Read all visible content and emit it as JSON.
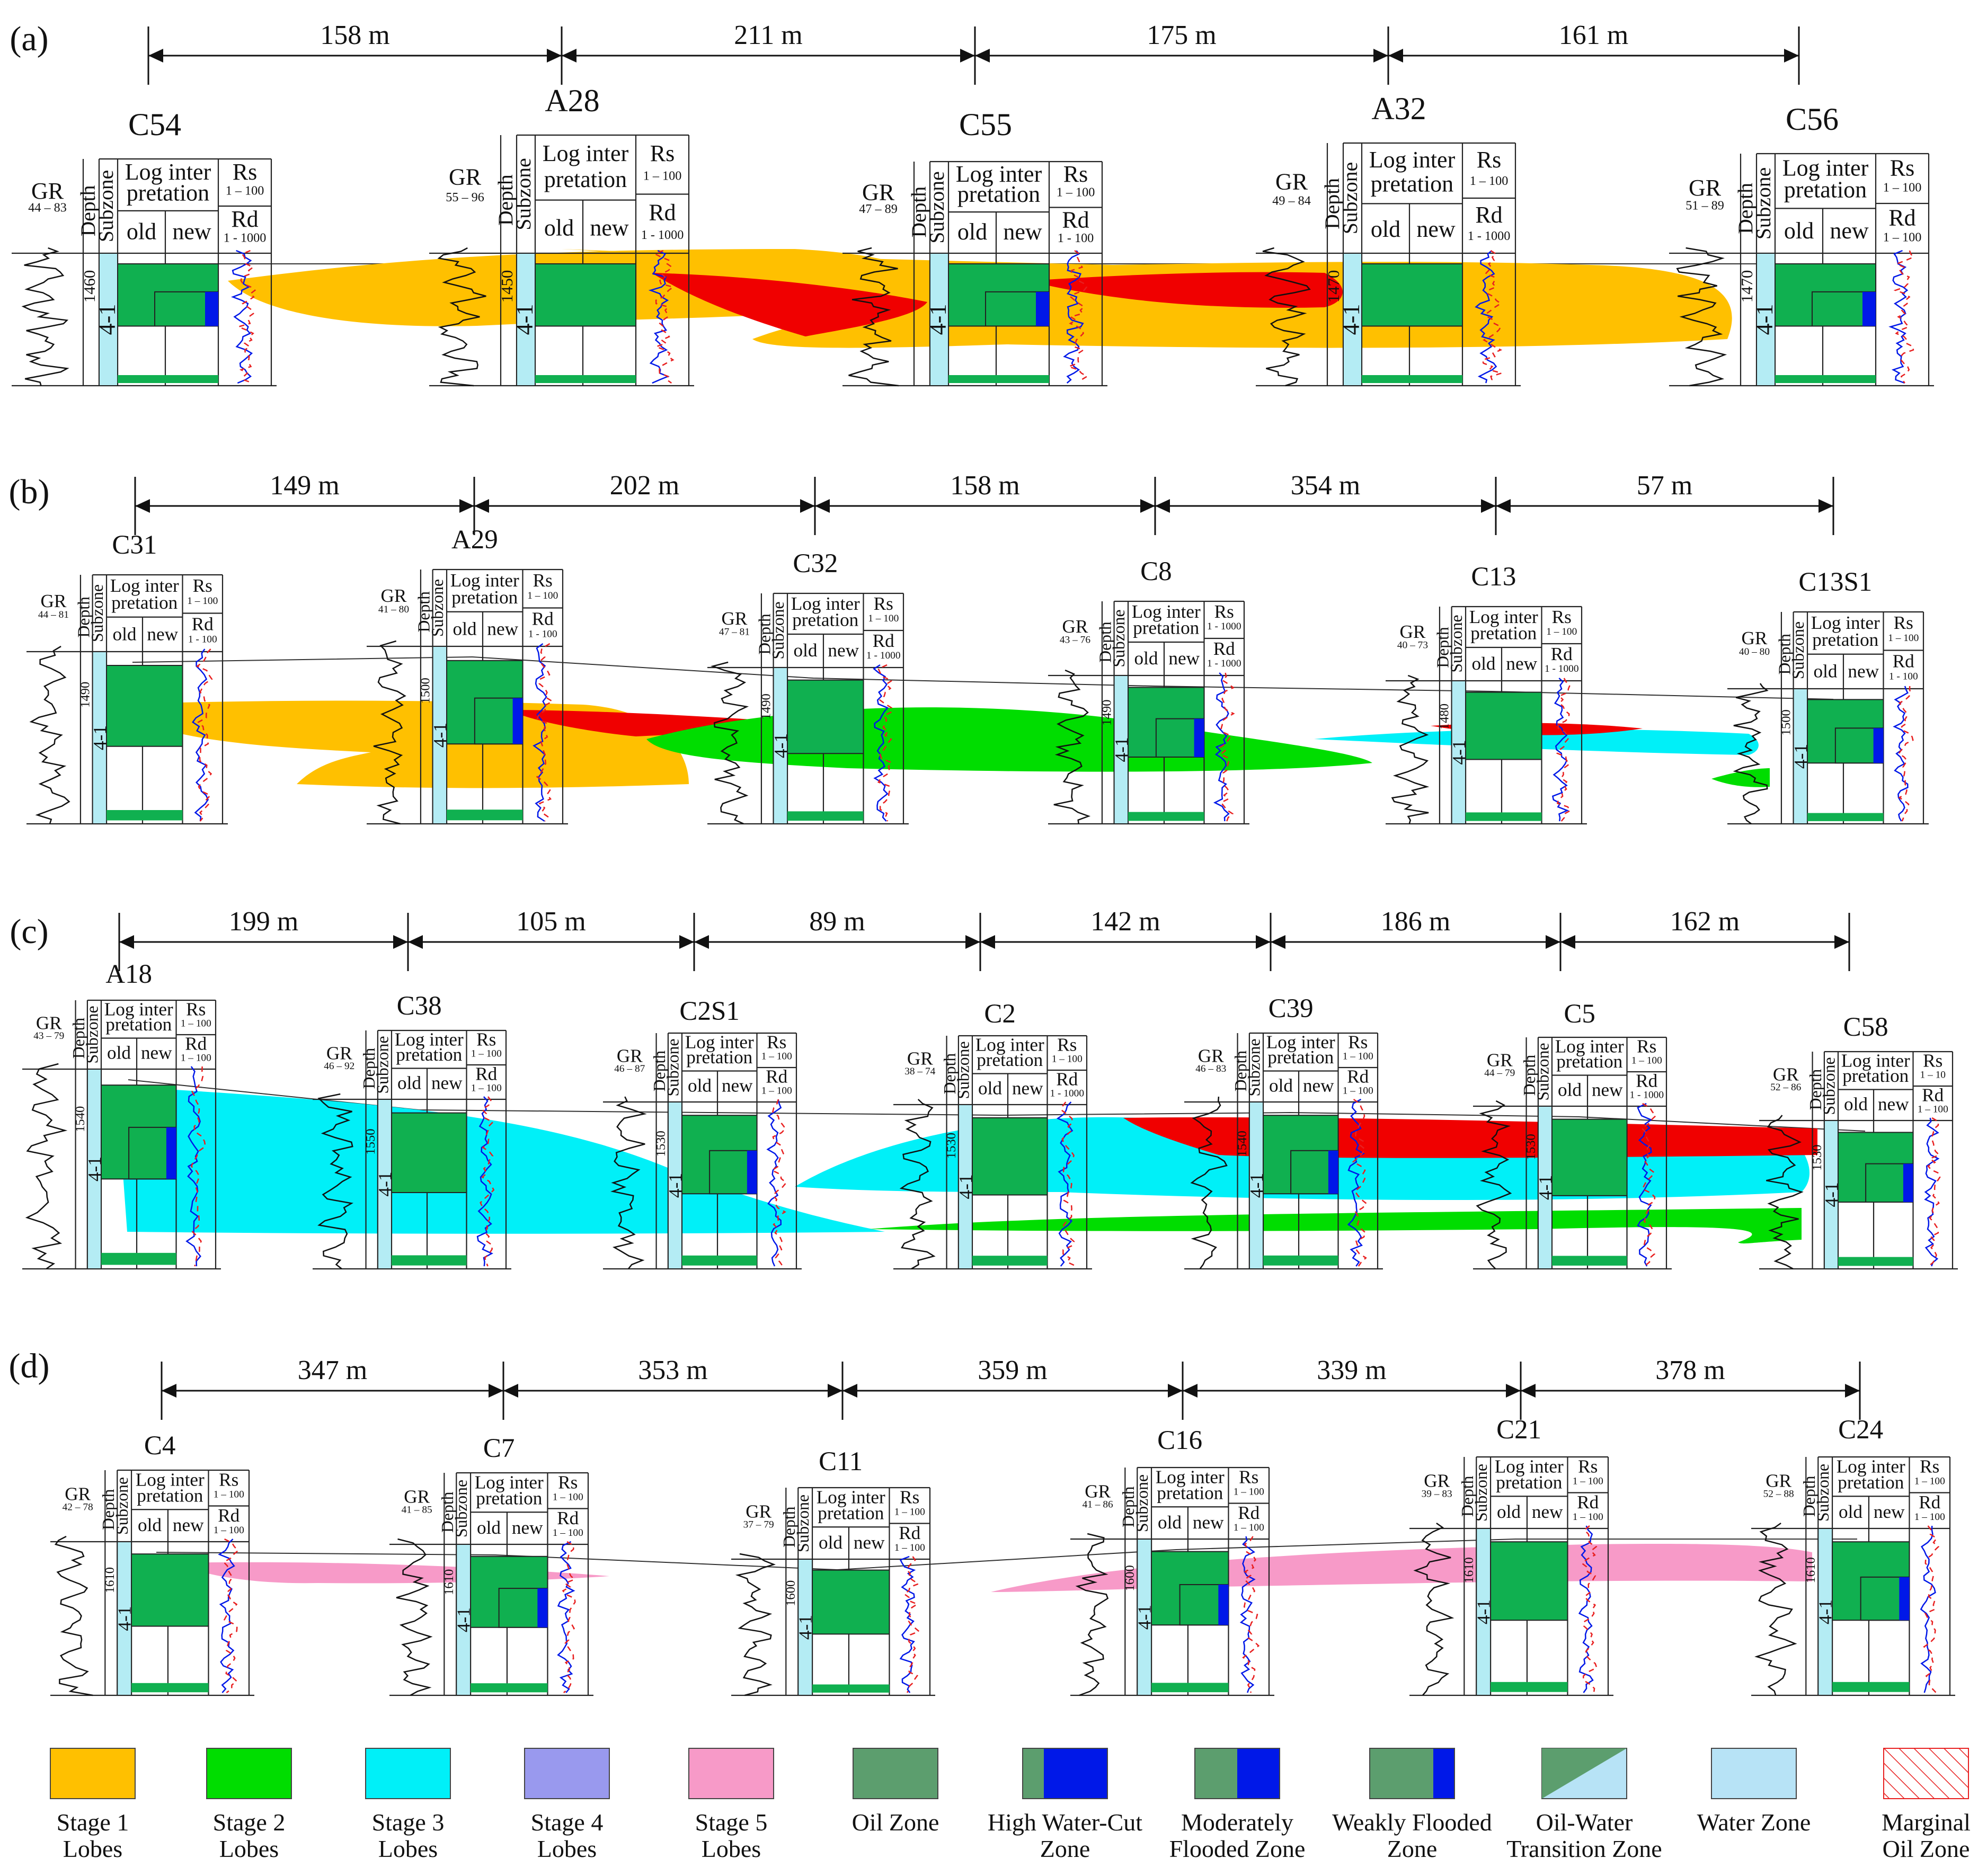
{
  "panels": [
    {
      "label": "(a)",
      "distances": [
        "158 m",
        "211 m",
        "175 m",
        "161 m"
      ],
      "wells": [
        {
          "name": "C54",
          "gr": "44 – 83",
          "rs": "1 – 100",
          "rd": "1 - 1000",
          "depth": "1460",
          "subzone": "4-1"
        },
        {
          "name": "A28",
          "gr": "55 – 96",
          "rs": "1 – 100",
          "rd": "1 - 1000",
          "depth": "1450",
          "subzone": "4-1"
        },
        {
          "name": "C55",
          "gr": "47 – 89",
          "rs": "1 – 100",
          "rd": "1 - 100",
          "depth": "",
          "subzone": "4-1"
        },
        {
          "name": "A32",
          "gr": "49 – 84",
          "rs": "1 – 100",
          "rd": "1 - 1000",
          "depth": "1470",
          "subzone": "4-1"
        },
        {
          "name": "C56",
          "gr": "51 – 89",
          "rs": "1 – 100",
          "rd": "1 – 100",
          "depth": "1470",
          "subzone": "4-1"
        }
      ]
    },
    {
      "label": "(b)",
      "distances": [
        "149 m",
        "202 m",
        "158 m",
        "354 m",
        "57 m"
      ],
      "wells": [
        {
          "name": "C31",
          "gr": "44 – 81",
          "rs": "1 – 100",
          "rd": "1 - 100",
          "depth": "1490",
          "subzone": "4-1"
        },
        {
          "name": "A29",
          "gr": "41 – 80",
          "rs": "1 – 100",
          "rd": "1 - 100",
          "depth": "1500",
          "subzone": "4-1"
        },
        {
          "name": "C32",
          "gr": "47 – 81",
          "rs": "1 – 100",
          "rd": "1 - 1000",
          "depth": "1490",
          "subzone": "4-1"
        },
        {
          "name": "C8",
          "gr": "43 – 76",
          "rs": "1 - 1000",
          "rd": "1 - 1000",
          "depth": "1490",
          "subzone": "4-1"
        },
        {
          "name": "C13",
          "gr": "40 – 73",
          "rs": "1 – 100",
          "rd": "1 - 1000",
          "depth": "1480",
          "subzone": "4-1"
        },
        {
          "name": "C13S1",
          "gr": "40 – 80",
          "rs": "1 – 100",
          "rd": "1 - 100",
          "depth": "1500",
          "subzone": "4-1"
        }
      ]
    },
    {
      "label": "(c)",
      "distances": [
        "199 m",
        "105 m",
        "89 m",
        "142 m",
        "186 m",
        "162 m"
      ],
      "wells": [
        {
          "name": "A18",
          "gr": "43 – 79",
          "rs": "1 – 100",
          "rd": "1 – 100",
          "depth": "1540",
          "subzone": "4-1"
        },
        {
          "name": "C38",
          "gr": "46 – 92",
          "rs": "1 – 100",
          "rd": "1 – 100",
          "depth": "1550",
          "subzone": "4-1"
        },
        {
          "name": "C2S1",
          "gr": "46 – 87",
          "rs": "1 – 100",
          "rd": "1 – 100",
          "depth": "1530",
          "subzone": "4-1"
        },
        {
          "name": "C2",
          "gr": "38 – 74",
          "rs": "1 – 100",
          "rd": "1 - 1000",
          "depth": "1530",
          "subzone": "4-1"
        },
        {
          "name": "C39",
          "gr": "46 – 83",
          "rs": "1 – 100",
          "rd": "1 – 100",
          "depth": "1540",
          "subzone": "4-1"
        },
        {
          "name": "C5",
          "gr": "44 – 79",
          "rs": "1 – 100",
          "rd": "1 - 1000",
          "depth": "1530",
          "subzone": "4-1"
        },
        {
          "name": "C58",
          "gr": "52 – 86",
          "rs": "1 – 10",
          "rd": "1 – 100",
          "depth": "1530",
          "subzone": "4-1"
        }
      ]
    },
    {
      "label": "(d)",
      "distances": [
        "347 m",
        "353 m",
        "359 m",
        "339 m",
        "378 m"
      ],
      "wells": [
        {
          "name": "C4",
          "gr": "42 – 78",
          "rs": "1 – 100",
          "rd": "1 – 100",
          "depth": "1610",
          "subzone": "4-1"
        },
        {
          "name": "C7",
          "gr": "41 – 85",
          "rs": "1 – 100",
          "rd": "1 – 100",
          "depth": "1610",
          "subzone": "4-1"
        },
        {
          "name": "C11",
          "gr": "37 – 79",
          "rs": "1 – 100",
          "rd": "1 – 100",
          "depth": "1600",
          "subzone": "4-1"
        },
        {
          "name": "C16",
          "gr": "41 – 86",
          "rs": "1 – 100",
          "rd": "1 – 100",
          "depth": "1600",
          "subzone": "4-1"
        },
        {
          "name": "C21",
          "gr": "39 – 83",
          "rs": "1 – 100",
          "rd": "1 – 100",
          "depth": "1610",
          "subzone": "4-1"
        },
        {
          "name": "C24",
          "gr": "52 – 88",
          "rs": "1 – 100",
          "rd": "1 – 100",
          "depth": "1610",
          "subzone": "4-1"
        }
      ]
    }
  ],
  "header": {
    "gr": "GR",
    "depth": "Depth",
    "subzone": "Subzone",
    "log1": "Log inter",
    "log2": "pretation",
    "old": "old",
    "new": "new",
    "rs": "Rs",
    "rd": "Rd"
  },
  "legend": [
    {
      "key": "stage1",
      "line1": "Stage 1",
      "line2": "Lobes"
    },
    {
      "key": "stage2",
      "line1": "Stage 2",
      "line2": "Lobes"
    },
    {
      "key": "stage3",
      "line1": "Stage 3",
      "line2": "Lobes"
    },
    {
      "key": "stage4",
      "line1": "Stage 4",
      "line2": "Lobes"
    },
    {
      "key": "stage5",
      "line1": "Stage 5",
      "line2": "Lobes"
    },
    {
      "key": "oil",
      "line1": "Oil Zone",
      "line2": ""
    },
    {
      "key": "hwc",
      "line1": "High Water-Cut",
      "line2": "Zone"
    },
    {
      "key": "mfz",
      "line1": "Moderately",
      "line2": "Flooded Zone"
    },
    {
      "key": "wfz",
      "line1": "Weakly Flooded",
      "line2": "Zone"
    },
    {
      "key": "owt",
      "line1": "Oil-Water",
      "line2": "Transition Zone"
    },
    {
      "key": "water",
      "line1": "Water Zone",
      "line2": ""
    },
    {
      "key": "marginal",
      "line1": "Marginal",
      "line2": "Oil Zone"
    }
  ],
  "colors": {
    "stage1": "#FFC000",
    "stage2": "#00DD00",
    "stage3": "#00F0F8",
    "stage4": "#9999EE",
    "stage5": "#F79AC8",
    "red": "#F00000",
    "oil": "#5C9E6E",
    "oilbright": "#10B050",
    "blue": "#0018E8",
    "water": "#B7E3F6",
    "subzone": "#B4ECF4",
    "marginal": "#E82020"
  }
}
